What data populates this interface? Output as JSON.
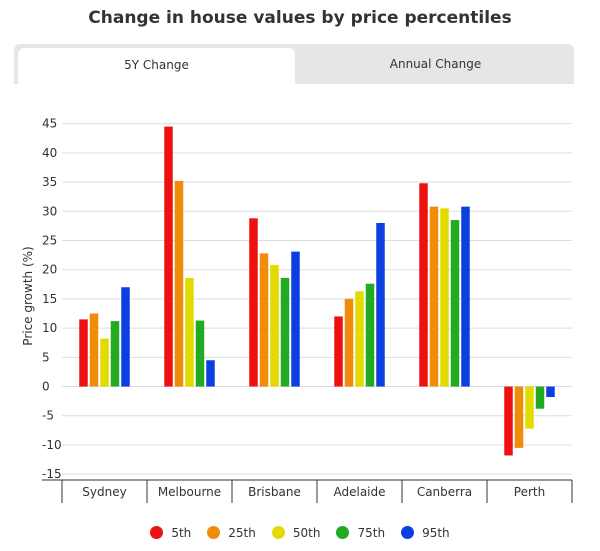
{
  "chart_data": {
    "type": "bar",
    "title": "Change in house values by price percentiles",
    "tabs": [
      {
        "label": "5Y Change",
        "active": true
      },
      {
        "label": "Annual Change",
        "active": false
      }
    ],
    "ylabel": "Price growth (%)",
    "xlabel": "",
    "ylim": [
      -16,
      47
    ],
    "yticks": [
      45,
      40,
      35,
      30,
      25,
      20,
      15,
      10,
      5,
      0,
      -5,
      -10,
      -15
    ],
    "grid": true,
    "legend_position": "bottom",
    "categories": [
      "Sydney",
      "Melbourne",
      "Brisbane",
      "Adelaide",
      "Canberra",
      "Perth"
    ],
    "series": [
      {
        "name": "5th",
        "color": "#ee1111",
        "values": [
          11.5,
          44.5,
          28.8,
          12.0,
          34.8,
          -11.8
        ]
      },
      {
        "name": "25th",
        "color": "#f08c0a",
        "values": [
          12.5,
          35.2,
          22.8,
          15.0,
          30.8,
          -10.5
        ]
      },
      {
        "name": "50th",
        "color": "#e3db00",
        "values": [
          8.2,
          18.6,
          20.8,
          16.3,
          30.5,
          -7.2
        ]
      },
      {
        "name": "75th",
        "color": "#22aa22",
        "values": [
          11.2,
          11.3,
          18.6,
          17.6,
          28.5,
          -3.8
        ]
      },
      {
        "name": "95th",
        "color": "#0b3fe0",
        "values": [
          17.0,
          4.5,
          23.1,
          28.0,
          30.8,
          -1.8
        ]
      }
    ]
  }
}
